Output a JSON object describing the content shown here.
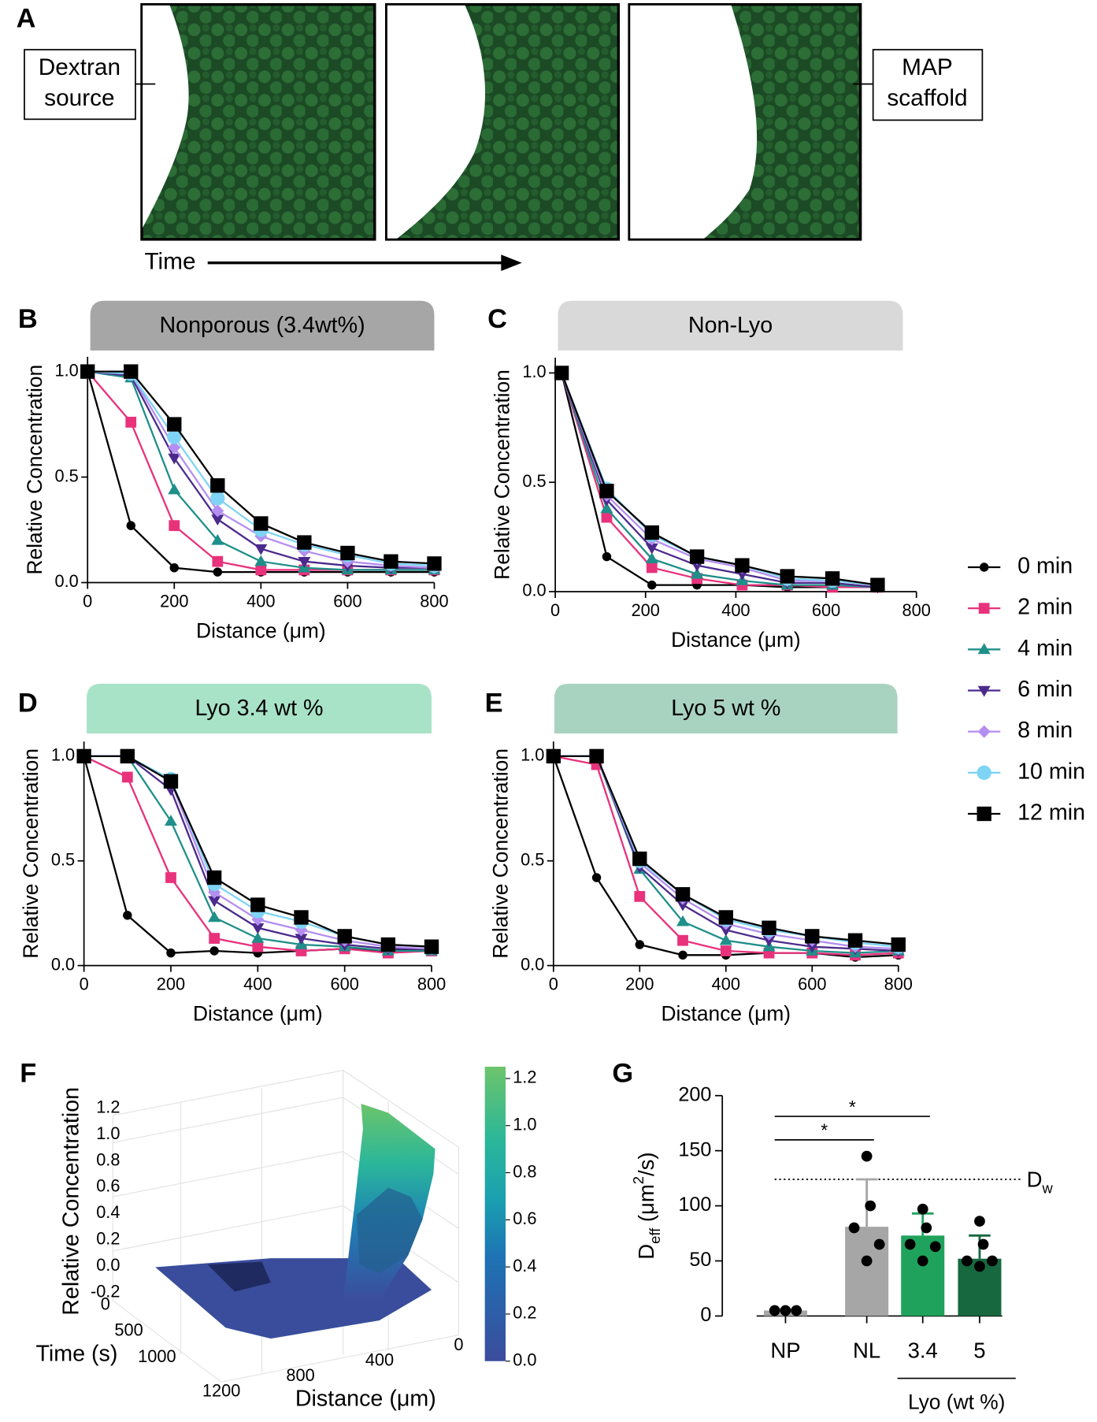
{
  "figure": {
    "panel_labels": [
      "A",
      "B",
      "C",
      "D",
      "E",
      "F",
      "G"
    ],
    "panel_a": {
      "source_label": [
        "Dextran",
        "source"
      ],
      "scaffold_label": [
        "MAP",
        "scaffold"
      ],
      "time_label": "Time"
    }
  },
  "legend": {
    "entries": [
      {
        "name": "0 min",
        "color": "#000000",
        "marker": "circle"
      },
      {
        "name": "2 min",
        "color": "#e8327c",
        "marker": "square"
      },
      {
        "name": "4 min",
        "color": "#1f8f8a",
        "marker": "triangle-up"
      },
      {
        "name": "6 min",
        "color": "#4b2a8c",
        "marker": "triangle-down"
      },
      {
        "name": "8 min",
        "color": "#b48ef0",
        "marker": "diamond"
      },
      {
        "name": "10 min",
        "color": "#7fd4f5",
        "marker": "circle-large"
      },
      {
        "name": "12 min",
        "color": "#000000",
        "marker": "square-large"
      }
    ]
  },
  "chart_data": [
    {
      "type": "line",
      "title": "Nonporous (3.4wt%)",
      "title_color": "#a6a6a6",
      "xlabel": "Distance (μm)",
      "ylabel": "Relative Concentration",
      "x": [
        0,
        100,
        200,
        300,
        400,
        500,
        600,
        700,
        800
      ],
      "xlim": [
        0,
        800
      ],
      "xticks": [
        0,
        200,
        400,
        600,
        800
      ],
      "ylim": [
        0,
        1.07
      ],
      "yticks": [
        {
          "value": 0,
          "label": "0.0"
        },
        0.5,
        {
          "value": 1,
          "label": "1.0"
        }
      ],
      "series": [
        {
          "values": [
            1.0,
            0.27,
            0.07,
            0.05,
            0.05,
            0.05,
            0.05,
            0.05,
            0.05
          ]
        },
        {
          "values": [
            1.0,
            0.76,
            0.27,
            0.1,
            0.06,
            0.06,
            0.06,
            0.06,
            0.06
          ]
        },
        {
          "values": [
            1.0,
            0.97,
            0.44,
            0.2,
            0.1,
            0.07,
            0.06,
            0.06,
            0.06
          ]
        },
        {
          "values": [
            1.0,
            0.98,
            0.59,
            0.3,
            0.16,
            0.1,
            0.08,
            0.07,
            0.07
          ]
        },
        {
          "values": [
            1.0,
            0.99,
            0.64,
            0.34,
            0.22,
            0.15,
            0.1,
            0.08,
            0.07
          ]
        },
        {
          "values": [
            1.0,
            0.99,
            0.69,
            0.4,
            0.25,
            0.18,
            0.13,
            0.09,
            0.08
          ]
        },
        {
          "values": [
            1.0,
            1.0,
            0.75,
            0.46,
            0.28,
            0.19,
            0.14,
            0.1,
            0.09
          ]
        }
      ]
    },
    {
      "type": "line",
      "title": "Non-Lyo",
      "title_color": "#d9d9d9",
      "xlabel": "Distance (μm)",
      "ylabel": "Relative Concentration",
      "x": [
        14,
        114,
        214,
        314,
        414,
        514,
        614,
        714
      ],
      "xlim": [
        0,
        800
      ],
      "xticks": [
        0,
        200,
        400,
        600,
        800
      ],
      "ylim": [
        0,
        1.07
      ],
      "yticks": [
        {
          "value": 0,
          "label": "0.0"
        },
        0.5,
        {
          "value": 1,
          "label": "1.0"
        }
      ],
      "series": [
        {
          "values": [
            1.0,
            0.16,
            0.03,
            0.03,
            0.03,
            0.02,
            0.02,
            0.02
          ]
        },
        {
          "values": [
            1.0,
            0.34,
            0.11,
            0.06,
            0.03,
            0.03,
            0.02,
            0.02
          ]
        },
        {
          "values": [
            1.0,
            0.38,
            0.15,
            0.08,
            0.05,
            0.03,
            0.03,
            0.02
          ]
        },
        {
          "values": [
            1.0,
            0.42,
            0.2,
            0.12,
            0.08,
            0.04,
            0.04,
            0.02
          ]
        },
        {
          "values": [
            1.0,
            0.44,
            0.24,
            0.15,
            0.11,
            0.05,
            0.05,
            0.03
          ]
        },
        {
          "values": [
            1.0,
            0.47,
            0.26,
            0.16,
            0.12,
            0.06,
            0.05,
            0.03
          ]
        },
        {
          "values": [
            1.0,
            0.46,
            0.27,
            0.16,
            0.12,
            0.07,
            0.06,
            0.03
          ]
        }
      ]
    },
    {
      "type": "line",
      "title": "Lyo 3.4 wt %",
      "title_color": "#a8e3c8",
      "xlabel": "Distance (μm)",
      "ylabel": "Relative Concentration",
      "x": [
        0,
        100,
        200,
        300,
        400,
        500,
        600,
        700,
        800
      ],
      "xlim": [
        0,
        800
      ],
      "xticks": [
        0,
        200,
        400,
        600,
        800
      ],
      "ylim": [
        0,
        1.07
      ],
      "yticks": [
        {
          "value": 0,
          "label": "0.0"
        },
        0.5,
        {
          "value": 1,
          "label": "1.0"
        }
      ],
      "series": [
        {
          "values": [
            1.0,
            0.24,
            0.06,
            0.07,
            0.06,
            0.07,
            0.08,
            0.07,
            0.08
          ]
        },
        {
          "values": [
            1.0,
            0.9,
            0.42,
            0.13,
            0.09,
            0.07,
            0.08,
            0.06,
            0.07
          ]
        },
        {
          "values": [
            1.0,
            1.0,
            0.69,
            0.23,
            0.13,
            0.1,
            0.09,
            0.07,
            0.07
          ]
        },
        {
          "values": [
            1.0,
            1.0,
            0.84,
            0.31,
            0.18,
            0.13,
            0.1,
            0.08,
            0.08
          ]
        },
        {
          "values": [
            1.0,
            1.0,
            0.88,
            0.35,
            0.22,
            0.17,
            0.12,
            0.09,
            0.08
          ]
        },
        {
          "values": [
            1.0,
            1.0,
            0.89,
            0.39,
            0.26,
            0.21,
            0.14,
            0.1,
            0.09
          ]
        },
        {
          "values": [
            1.0,
            1.0,
            0.88,
            0.42,
            0.29,
            0.23,
            0.14,
            0.1,
            0.09
          ]
        }
      ]
    },
    {
      "type": "line",
      "title": "Lyo 5 wt %",
      "title_color": "#a9d3c1",
      "xlabel": "Distance (μm)",
      "ylabel": "Relative Concentration",
      "x": [
        0,
        100,
        200,
        300,
        400,
        500,
        600,
        700,
        800
      ],
      "xlim": [
        0,
        800
      ],
      "xticks": [
        0,
        200,
        400,
        600,
        800
      ],
      "ylim": [
        0,
        1.07
      ],
      "yticks": [
        {
          "value": 0,
          "label": "0.0"
        },
        0.5,
        {
          "value": 1,
          "label": "1.0"
        }
      ],
      "series": [
        {
          "values": [
            1.0,
            0.42,
            0.1,
            0.05,
            0.05,
            0.06,
            0.06,
            0.04,
            0.05
          ]
        },
        {
          "values": [
            1.0,
            0.96,
            0.33,
            0.12,
            0.07,
            0.06,
            0.06,
            0.05,
            0.06
          ]
        },
        {
          "values": [
            1.0,
            1.0,
            0.46,
            0.21,
            0.12,
            0.09,
            0.07,
            0.06,
            0.07
          ]
        },
        {
          "values": [
            1.0,
            1.0,
            0.47,
            0.29,
            0.17,
            0.12,
            0.09,
            0.08,
            0.07
          ]
        },
        {
          "values": [
            1.0,
            1.0,
            0.49,
            0.32,
            0.2,
            0.15,
            0.12,
            0.09,
            0.08
          ]
        },
        {
          "values": [
            1.0,
            1.0,
            0.5,
            0.34,
            0.22,
            0.17,
            0.14,
            0.11,
            0.09
          ]
        },
        {
          "values": [
            1.0,
            1.0,
            0.51,
            0.34,
            0.23,
            0.18,
            0.14,
            0.12,
            0.1
          ]
        }
      ]
    },
    {
      "type": "surface",
      "zlabel": "Relative Concentration",
      "xlabel": "Time (s)",
      "ylabel": "Distance (μm)",
      "xlim": [
        0,
        1200
      ],
      "xticks": [
        0,
        500,
        1000
      ],
      "ylim": [
        0,
        1200
      ],
      "yticks": [
        0,
        400,
        800,
        1200
      ],
      "zlim": [
        -0.2,
        1.2
      ],
      "zticks": [
        -0.2,
        {
          "value": 0,
          "label": "0.0"
        },
        0.2,
        0.4,
        0.6,
        0.8,
        {
          "value": 1,
          "label": "1.0"
        },
        1.2
      ],
      "clim": [
        0,
        1.25
      ],
      "cticks": [
        {
          "value": 0,
          "label": "0.0"
        },
        0.2,
        0.4,
        0.6,
        0.8,
        {
          "value": 1,
          "label": "1.0"
        },
        1.2
      ]
    },
    {
      "type": "bar",
      "categories": [
        "NP",
        "NL",
        "3.4",
        "5"
      ],
      "values": [
        5,
        81,
        73,
        52
      ],
      "errors": [
        1,
        43,
        20,
        21
      ],
      "colors": [
        "#a6a6a6",
        "#a6a6a6",
        "#1fa35c",
        "#17683f"
      ],
      "points": [
        [
          5,
          5,
          5
        ],
        [
          145,
          100,
          80,
          65,
          50
        ],
        [
          97,
          80,
          65,
          63,
          50
        ],
        [
          86,
          65,
          50,
          50,
          45
        ]
      ],
      "ylabel_parts": [
        "D",
        "eff",
        " (μm",
        "2",
        "/s)"
      ],
      "ylim": [
        0,
        200
      ],
      "yticks": [
        0,
        50,
        100,
        150,
        200
      ],
      "reference_line": {
        "value": 124,
        "label": "D",
        "label_sub": "w"
      },
      "significance": [
        {
          "from": 0,
          "to": 1,
          "label": "*"
        },
        {
          "from": 0,
          "to": 2,
          "label": "*"
        }
      ],
      "group": {
        "label": "Lyo (wt %)",
        "from": 2,
        "to": 3
      }
    }
  ]
}
